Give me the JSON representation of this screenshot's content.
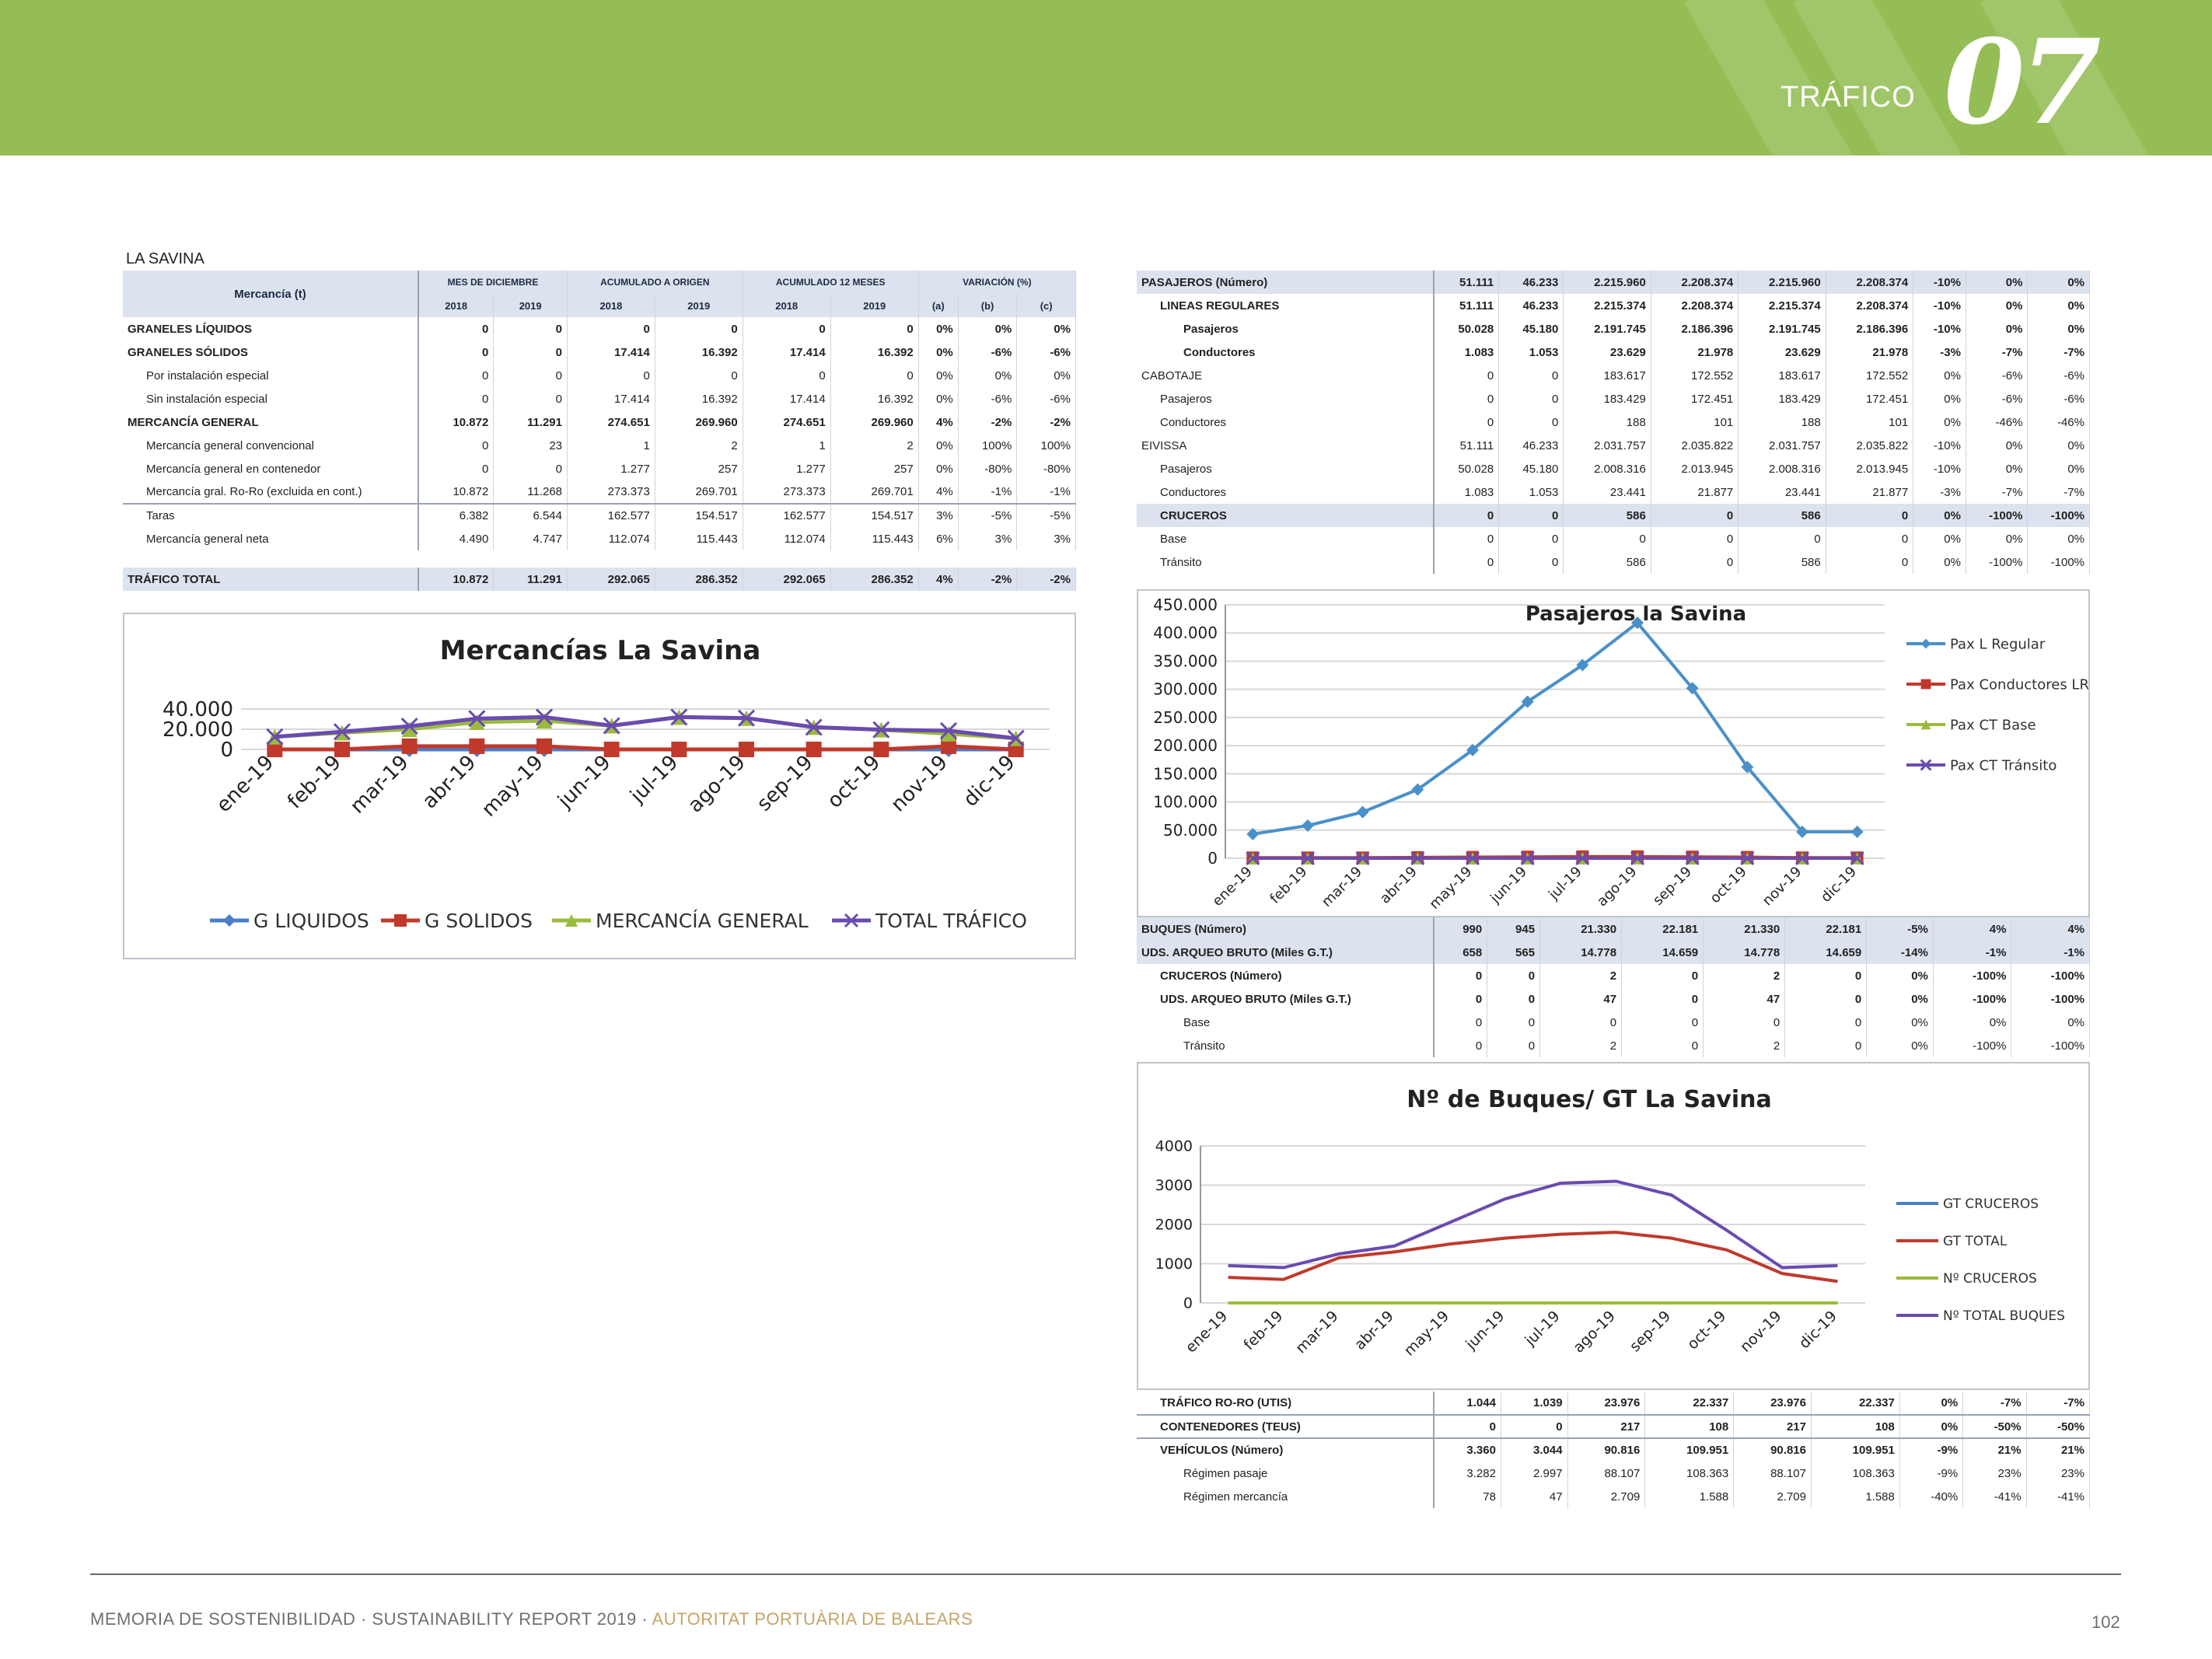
{
  "header": {
    "section_label": "TRÁFICO",
    "section_number": "07"
  },
  "left_table": {
    "title": "LA SAVINA",
    "col_header": "Mercancía (t)",
    "groups": [
      "MES DE DICIEMBRE",
      "ACUMULADO A ORIGEN",
      "ACUMULADO 12 MESES",
      "VARIACIÓN (%)"
    ],
    "years": [
      "2018",
      "2019",
      "2018",
      "2019",
      "2018",
      "2019",
      "(a)",
      "(b)",
      "(c)"
    ],
    "rows": [
      {
        "label": "GRANELES LÍQUIDOS",
        "style": "bold",
        "vals": [
          "0",
          "0",
          "0",
          "0",
          "0",
          "0",
          "0%",
          "0%",
          "0%"
        ]
      },
      {
        "label": "GRANELES SÓLIDOS",
        "style": "bold",
        "vals": [
          "0",
          "0",
          "17.414",
          "16.392",
          "17.414",
          "16.392",
          "0%",
          "-6%",
          "-6%"
        ]
      },
      {
        "label": "Por instalación especial",
        "style": "ind1",
        "vals": [
          "0",
          "0",
          "0",
          "0",
          "0",
          "0",
          "0%",
          "0%",
          "0%"
        ]
      },
      {
        "label": "Sin instalación especial",
        "style": "ind1",
        "vals": [
          "0",
          "0",
          "17.414",
          "16.392",
          "17.414",
          "16.392",
          "0%",
          "-6%",
          "-6%"
        ]
      },
      {
        "label": "MERCANCÍA GENERAL",
        "style": "bold",
        "vals": [
          "10.872",
          "11.291",
          "274.651",
          "269.960",
          "274.651",
          "269.960",
          "4%",
          "-2%",
          "-2%"
        ]
      },
      {
        "label": "Mercancía general convencional",
        "style": "ind1",
        "vals": [
          "0",
          "23",
          "1",
          "2",
          "1",
          "2",
          "0%",
          "100%",
          "100%"
        ]
      },
      {
        "label": "Mercancía general en contenedor",
        "style": "ind1",
        "vals": [
          "0",
          "0",
          "1.277",
          "257",
          "1.277",
          "257",
          "0%",
          "-80%",
          "-80%"
        ]
      },
      {
        "label": "Mercancía gral. Ro-Ro (excluida en cont.)",
        "style": "ind1",
        "vals": [
          "10.872",
          "11.268",
          "273.373",
          "269.701",
          "273.373",
          "269.701",
          "4%",
          "-1%",
          "-1%"
        ]
      },
      {
        "label": "Taras",
        "style": "ind1 sep",
        "vals": [
          "6.382",
          "6.544",
          "162.577",
          "154.517",
          "162.577",
          "154.517",
          "3%",
          "-5%",
          "-5%"
        ]
      },
      {
        "label": "Mercancía general neta",
        "style": "ind1",
        "vals": [
          "4.490",
          "4.747",
          "112.074",
          "115.443",
          "112.074",
          "115.443",
          "6%",
          "3%",
          "3%"
        ]
      }
    ],
    "total": {
      "label": "TRÁFICO TOTAL",
      "vals": [
        "10.872",
        "11.291",
        "292.065",
        "286.352",
        "292.065",
        "286.352",
        "4%",
        "-2%",
        "-2%"
      ]
    }
  },
  "chart_data": [
    {
      "type": "line",
      "title": "Mercancías La Savina",
      "categories": [
        "ene-19",
        "feb-19",
        "mar-19",
        "abr-19",
        "may-19",
        "jun-19",
        "jul-19",
        "ago-19",
        "sep-19",
        "oct-19",
        "nov-19",
        "dic-19"
      ],
      "ylim": [
        0,
        40000
      ],
      "yticks": [
        "40.000",
        "20.000",
        "0"
      ],
      "legend": "bottom",
      "series": [
        {
          "name": "G LIQUIDOS",
          "color": "#4a7ec7",
          "marker": "diamond",
          "values": [
            0,
            0,
            0,
            0,
            0,
            0,
            0,
            0,
            0,
            0,
            0,
            0
          ]
        },
        {
          "name": "G SOLIDOS",
          "color": "#c0392b",
          "marker": "square",
          "values": [
            0,
            0,
            3200,
            3200,
            3200,
            0,
            0,
            0,
            0,
            0,
            3200,
            0
          ]
        },
        {
          "name": "MERCANCÍA GENERAL",
          "color": "#9bbb3c",
          "marker": "triangle",
          "values": [
            12500,
            16500,
            20000,
            27000,
            28500,
            23500,
            32000,
            31000,
            22000,
            19500,
            15500,
            11000
          ]
        },
        {
          "name": "TOTAL TRÁFICO",
          "color": "#6a4bb0",
          "marker": "x",
          "values": [
            12500,
            17500,
            23000,
            30500,
            32000,
            23500,
            32000,
            31000,
            22000,
            19500,
            18500,
            11000
          ]
        }
      ]
    },
    {
      "type": "line",
      "title": "Pasajeros la Savina",
      "categories": [
        "ene-19",
        "feb-19",
        "mar-19",
        "abr-19",
        "may-19",
        "jun-19",
        "jul-19",
        "ago-19",
        "sep-19",
        "oct-19",
        "nov-19",
        "dic-19"
      ],
      "ylim": [
        0,
        450000
      ],
      "yticks": [
        "450.000",
        "400.000",
        "350.000",
        "300.000",
        "250.000",
        "200.000",
        "150.000",
        "100.000",
        "50.000",
        "0"
      ],
      "legend": "right",
      "series": [
        {
          "name": "Pax L Regular",
          "color": "#4a90c8",
          "marker": "diamond",
          "values": [
            43000,
            58000,
            82000,
            122000,
            192000,
            278000,
            343000,
            418000,
            302000,
            162000,
            47000,
            47000
          ]
        },
        {
          "name": "Pax Conductores LR",
          "color": "#c0392b",
          "marker": "square",
          "values": [
            1000,
            1000,
            1000,
            1500,
            2000,
            2500,
            3000,
            3000,
            2500,
            2000,
            1000,
            1000
          ]
        },
        {
          "name": "Pax CT Base",
          "color": "#9bbb3c",
          "marker": "triangle",
          "values": [
            0,
            0,
            0,
            0,
            0,
            0,
            0,
            0,
            0,
            0,
            0,
            0
          ]
        },
        {
          "name": "Pax CT Tránsito",
          "color": "#6a4bb0",
          "marker": "x",
          "values": [
            0,
            0,
            0,
            0,
            0,
            0,
            0,
            0,
            0,
            0,
            0,
            0
          ]
        }
      ]
    },
    {
      "type": "line",
      "title": "Nº de Buques/ GT La Savina",
      "categories": [
        "ene-19",
        "feb-19",
        "mar-19",
        "abr-19",
        "may-19",
        "jun-19",
        "jul-19",
        "ago-19",
        "sep-19",
        "oct-19",
        "nov-19",
        "dic-19"
      ],
      "ylim": [
        0,
        4000
      ],
      "yticks": [
        "4000",
        "3000",
        "2000",
        "1000",
        "0"
      ],
      "legend": "right",
      "series": [
        {
          "name": "GT CRUCEROS",
          "color": "#4a7ec7",
          "values": [
            0,
            0,
            0,
            0,
            0,
            0,
            0,
            0,
            0,
            0,
            0,
            0
          ]
        },
        {
          "name": "GT TOTAL",
          "color": "#c0392b",
          "values": [
            650,
            600,
            1150,
            1300,
            1500,
            1650,
            1750,
            1800,
            1650,
            1350,
            750,
            550
          ]
        },
        {
          "name": "Nº CRUCEROS",
          "color": "#9bbb3c",
          "values": [
            0,
            0,
            0,
            0,
            0,
            0,
            0,
            0,
            0,
            0,
            0,
            0
          ]
        },
        {
          "name": "Nº TOTAL BUQUES",
          "color": "#6a4bb0",
          "values": [
            950,
            900,
            1250,
            1450,
            2050,
            2650,
            3050,
            3100,
            2750,
            1850,
            900,
            950
          ]
        }
      ]
    }
  ],
  "pax_table": {
    "rows": [
      {
        "label": "PASAJEROS (Número)",
        "style": "hl",
        "vals": [
          "51.111",
          "46.233",
          "2.215.960",
          "2.208.374",
          "2.215.960",
          "2.208.374",
          "-10%",
          "0%",
          "0%"
        ]
      },
      {
        "label": "LINEAS REGULARES",
        "style": "bold ind1",
        "vals": [
          "51.111",
          "46.233",
          "2.215.374",
          "2.208.374",
          "2.215.374",
          "2.208.374",
          "-10%",
          "0%",
          "0%"
        ]
      },
      {
        "label": "Pasajeros",
        "style": "bold ind2",
        "vals": [
          "50.028",
          "45.180",
          "2.191.745",
          "2.186.396",
          "2.191.745",
          "2.186.396",
          "-10%",
          "0%",
          "0%"
        ]
      },
      {
        "label": "Conductores",
        "style": "bold ind2",
        "vals": [
          "1.083",
          "1.053",
          "23.629",
          "21.978",
          "23.629",
          "21.978",
          "-3%",
          "-7%",
          "-7%"
        ]
      },
      {
        "label": "CABOTAJE",
        "style": "",
        "vals": [
          "0",
          "0",
          "183.617",
          "172.552",
          "183.617",
          "172.552",
          "0%",
          "-6%",
          "-6%"
        ]
      },
      {
        "label": "Pasajeros",
        "style": "ind1",
        "vals": [
          "0",
          "0",
          "183.429",
          "172.451",
          "183.429",
          "172.451",
          "0%",
          "-6%",
          "-6%"
        ]
      },
      {
        "label": "Conductores",
        "style": "ind1",
        "vals": [
          "0",
          "0",
          "188",
          "101",
          "188",
          "101",
          "0%",
          "-46%",
          "-46%"
        ]
      },
      {
        "label": "EIVISSA",
        "style": "",
        "vals": [
          "51.111",
          "46.233",
          "2.031.757",
          "2.035.822",
          "2.031.757",
          "2.035.822",
          "-10%",
          "0%",
          "0%"
        ]
      },
      {
        "label": "Pasajeros",
        "style": "ind1",
        "vals": [
          "50.028",
          "45.180",
          "2.008.316",
          "2.013.945",
          "2.008.316",
          "2.013.945",
          "-10%",
          "0%",
          "0%"
        ]
      },
      {
        "label": "Conductores",
        "style": "ind1",
        "vals": [
          "1.083",
          "1.053",
          "23.441",
          "21.877",
          "23.441",
          "21.877",
          "-3%",
          "-7%",
          "-7%"
        ]
      },
      {
        "label": "CRUCEROS",
        "style": "ind1 hl",
        "vals": [
          "0",
          "0",
          "586",
          "0",
          "586",
          "0",
          "0%",
          "-100%",
          "-100%"
        ]
      },
      {
        "label": "Base",
        "style": "ind1",
        "vals": [
          "0",
          "0",
          "0",
          "0",
          "0",
          "0",
          "0%",
          "0%",
          "0%"
        ]
      },
      {
        "label": "Tránsito",
        "style": "ind1",
        "vals": [
          "0",
          "0",
          "586",
          "0",
          "586",
          "0",
          "0%",
          "-100%",
          "-100%"
        ]
      }
    ]
  },
  "ships_table": {
    "rows": [
      {
        "label": "BUQUES (Número)",
        "style": "hl",
        "vals": [
          "990",
          "945",
          "21.330",
          "22.181",
          "21.330",
          "22.181",
          "-5%",
          "4%",
          "4%"
        ]
      },
      {
        "label": "UDS. ARQUEO BRUTO (Miles G.T.)",
        "style": "hl",
        "vals": [
          "658",
          "565",
          "14.778",
          "14.659",
          "14.778",
          "14.659",
          "-14%",
          "-1%",
          "-1%"
        ]
      },
      {
        "label": "CRUCEROS (Número)",
        "style": "bold ind1",
        "vals": [
          "0",
          "0",
          "2",
          "0",
          "2",
          "0",
          "0%",
          "-100%",
          "-100%"
        ]
      },
      {
        "label": "UDS. ARQUEO BRUTO (Miles G.T.)",
        "style": "bold ind1",
        "vals": [
          "0",
          "0",
          "47",
          "0",
          "47",
          "0",
          "0%",
          "-100%",
          "-100%"
        ]
      },
      {
        "label": "Base",
        "style": "ind2",
        "vals": [
          "0",
          "0",
          "0",
          "0",
          "0",
          "0",
          "0%",
          "0%",
          "0%"
        ]
      },
      {
        "label": "Tránsito",
        "style": "ind2",
        "vals": [
          "0",
          "0",
          "2",
          "0",
          "2",
          "0",
          "0%",
          "-100%",
          "-100%"
        ]
      }
    ]
  },
  "roro_table": {
    "rows": [
      {
        "label": "TRÁFICO RO-RO (UTIS)",
        "style": "bold ind1",
        "vals": [
          "1.044",
          "1.039",
          "23.976",
          "22.337",
          "23.976",
          "22.337",
          "0%",
          "-7%",
          "-7%"
        ]
      },
      {
        "label": "CONTENEDORES (TEUS)",
        "style": "bold ind1 sep",
        "vals": [
          "0",
          "0",
          "217",
          "108",
          "217",
          "108",
          "0%",
          "-50%",
          "-50%"
        ]
      },
      {
        "label": "VEHÍCULOS (Número)",
        "style": "bold ind1 sep",
        "vals": [
          "3.360",
          "3.044",
          "90.816",
          "109.951",
          "90.816",
          "109.951",
          "-9%",
          "21%",
          "21%"
        ]
      },
      {
        "label": "Régimen pasaje",
        "style": "ind2",
        "vals": [
          "3.282",
          "2.997",
          "88.107",
          "108.363",
          "88.107",
          "108.363",
          "-9%",
          "23%",
          "23%"
        ]
      },
      {
        "label": "Régimen mercancía",
        "style": "ind2",
        "vals": [
          "78",
          "47",
          "2.709",
          "1.588",
          "2.709",
          "1.588",
          "-40%",
          "-41%",
          "-41%"
        ]
      }
    ]
  },
  "footer": {
    "text_main": "MEMORIA DE SOSTENIBILIDAD · SUSTAINABILITY REPORT 2019 · ",
    "text_accent": "AUTORITAT PORTUÀRIA DE BALEARS",
    "page_number": "102"
  }
}
